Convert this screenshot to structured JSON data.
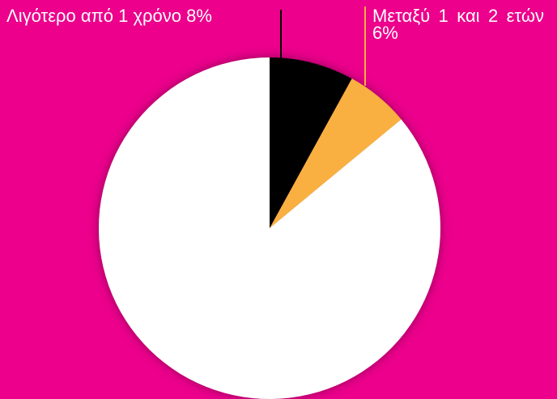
{
  "chart_data": {
    "type": "pie",
    "categories": [
      "Λιγότερο από 1 χρόνο",
      "Μεταξύ 1 και 2 ετών",
      null
    ],
    "values": [
      8,
      6,
      86
    ],
    "value_labels": [
      "8%",
      "6%",
      null
    ],
    "colors": [
      "#000000",
      "#f9b040",
      "#ffffff"
    ]
  }
}
